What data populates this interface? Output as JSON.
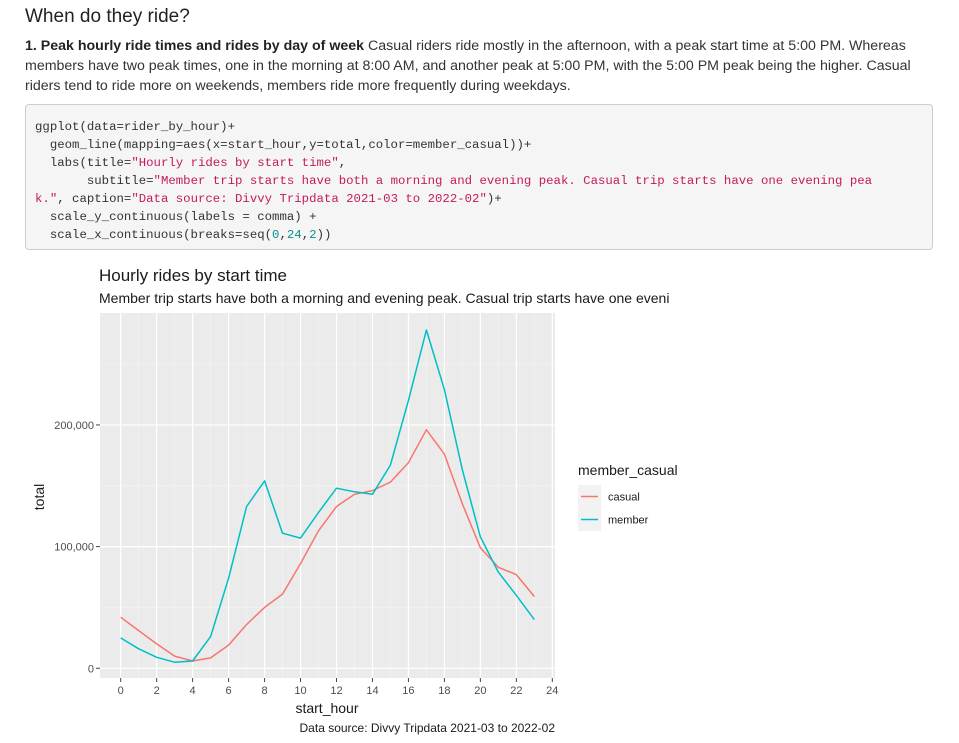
{
  "section": {
    "heading": "When do they ride?",
    "para_bold": "1. Peak hourly ride times and rides by day of week",
    "para_text": " Casual riders ride mostly in the afternoon, with a peak start time at 5:00 PM. Whereas members have two peak times, one in the morning at 8:00 AM, and another peak at 5:00 PM, with the 5:00 PM peak being the higher. Casual riders tend to ride more on weekends, members ride more frequently during weekdays."
  },
  "code": {
    "l1": "ggplot(data=rider_by_hour)+",
    "l2": "  geom_line(mapping=aes(x=start_hour,y=total,color=member_casual))+",
    "l3a": "  labs(title=",
    "l3s": "\"Hourly rides by start time\"",
    "l3b": ",",
    "l4a": "       subtitle=",
    "l4s": "\"Member trip starts have both a morning and evening peak. Casual trip starts have one evening pea",
    "l5s": "k.\"",
    "l5a": ", caption=",
    "l5s2": "\"Data source: Divvy Tripdata 2021-03 to 2022-02\"",
    "l5b": ")+",
    "l6": "  scale_y_continuous(labels = comma) +",
    "l7a": "  scale_x_continuous(breaks=seq(",
    "l7n1": "0",
    "l7c1": ",",
    "l7n2": "24",
    "l7c2": ",",
    "l7n3": "2",
    "l7b": "))"
  },
  "chart_data": {
    "type": "line",
    "title": "Hourly rides by start time",
    "subtitle": "Member trip starts have both a morning and evening peak. Casual trip starts have one eveni",
    "caption": "Data source: Divvy Tripdata 2021-03 to 2022-02",
    "xlabel": "start_hour",
    "ylabel": "total",
    "xlim": [
      -1.15,
      24.15
    ],
    "ylim": [
      -8000,
      292000
    ],
    "x_ticks": [
      0,
      2,
      4,
      6,
      8,
      10,
      12,
      14,
      16,
      18,
      20,
      22,
      24
    ],
    "y_ticks": [
      0,
      100000,
      200000
    ],
    "y_tick_labels": [
      "0",
      "100,000",
      "200,000"
    ],
    "x": [
      0,
      1,
      2,
      3,
      4,
      5,
      6,
      7,
      8,
      9,
      10,
      11,
      12,
      13,
      14,
      15,
      16,
      17,
      18,
      19,
      20,
      21,
      22,
      23
    ],
    "series": [
      {
        "name": "casual",
        "color": "#F8766D",
        "values": [
          42000,
          31000,
          20000,
          10000,
          6000,
          8500,
          19000,
          36000,
          50000,
          61000,
          86000,
          113000,
          133000,
          143000,
          146000,
          153000,
          169000,
          196000,
          176000,
          135000,
          99000,
          83000,
          77000,
          59000
        ]
      },
      {
        "name": "member",
        "color": "#00BFC4",
        "values": [
          25000,
          16000,
          9000,
          5000,
          6000,
          26000,
          74000,
          133000,
          154000,
          111000,
          107000,
          128000,
          148000,
          145000,
          143000,
          167000,
          220000,
          278000,
          229000,
          163000,
          108000,
          79000,
          60000,
          40000
        ]
      }
    ],
    "legend": {
      "title": "member_casual",
      "position": "right"
    },
    "grid": true
  }
}
